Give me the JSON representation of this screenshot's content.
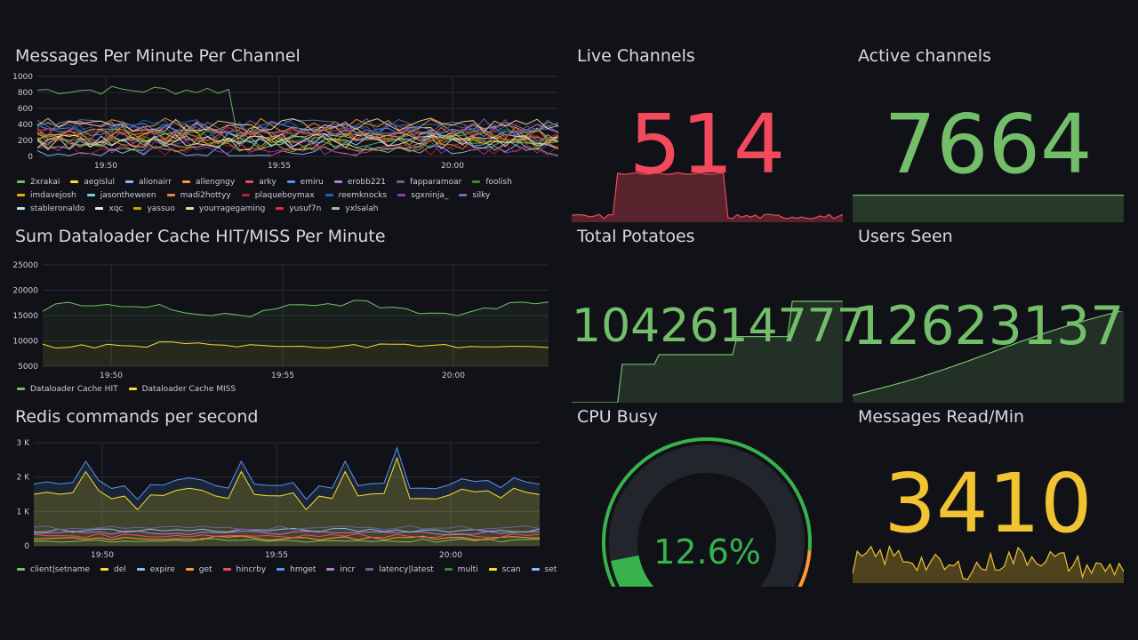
{
  "panels": {
    "messages": {
      "title": "Messages Per Minute Per Channel",
      "y_ticks": [
        "1000",
        "800",
        "600",
        "400",
        "200",
        "0"
      ],
      "x_ticks": [
        "19:50",
        "19:55",
        "20:00"
      ],
      "legend": [
        {
          "label": "2xrakai",
          "color": "#73bf69"
        },
        {
          "label": "aegislul",
          "color": "#fade2a"
        },
        {
          "label": "alionairr",
          "color": "#8ab8ff"
        },
        {
          "label": "allengngy",
          "color": "#ff9830"
        },
        {
          "label": "arky",
          "color": "#f2495c"
        },
        {
          "label": "emiru",
          "color": "#5794f2"
        },
        {
          "label": "erobb221",
          "color": "#b877d9"
        },
        {
          "label": "fapparamoar",
          "color": "#705da0"
        },
        {
          "label": "foolish",
          "color": "#37872d"
        },
        {
          "label": "imdavejosh",
          "color": "#e0b400"
        },
        {
          "label": "jasontheween",
          "color": "#6ed0e0"
        },
        {
          "label": "madi2hottyy",
          "color": "#ef843c"
        },
        {
          "label": "plaqueboymax",
          "color": "#c4162a"
        },
        {
          "label": "reemknocks",
          "color": "#1f60c4"
        },
        {
          "label": "sgxninja_",
          "color": "#8f3bb8"
        },
        {
          "label": "silky",
          "color": "#6d6fae"
        },
        {
          "label": "stableronaldo",
          "color": "#badff4"
        },
        {
          "label": "xqc",
          "color": "#f9e2d2"
        },
        {
          "label": "yassuo",
          "color": "#cca300"
        },
        {
          "label": "yourragegaming",
          "color": "#f4d598"
        },
        {
          "label": "yusuf7n",
          "color": "#e02f44"
        },
        {
          "label": "yxlsalah",
          "color": "#9ac48a"
        }
      ]
    },
    "cache": {
      "title": "Sum Dataloader Cache HIT/MISS Per Minute",
      "y_ticks": [
        "25000",
        "20000",
        "15000",
        "10000",
        "5000"
      ],
      "x_ticks": [
        "19:50",
        "19:55",
        "20:00"
      ],
      "legend": [
        {
          "label": "Dataloader Cache HIT",
          "color": "#73bf69"
        },
        {
          "label": "Dataloader Cache MISS",
          "color": "#fade2a"
        }
      ]
    },
    "redis": {
      "title": "Redis commands per second",
      "y_ticks": [
        "3 K",
        "2 K",
        "1 K",
        "0"
      ],
      "x_ticks": [
        "19:50",
        "19:55",
        "20:00"
      ],
      "legend": [
        {
          "label": "client|setname",
          "color": "#73bf69"
        },
        {
          "label": "del",
          "color": "#fade2a"
        },
        {
          "label": "expire",
          "color": "#8ab8ff"
        },
        {
          "label": "get",
          "color": "#ff9830"
        },
        {
          "label": "hincrby",
          "color": "#f2495c"
        },
        {
          "label": "hmget",
          "color": "#5794f2"
        },
        {
          "label": "incr",
          "color": "#b877d9"
        },
        {
          "label": "latency|latest",
          "color": "#705da0"
        },
        {
          "label": "multi",
          "color": "#37872d"
        },
        {
          "label": "scan",
          "color": "#fade2a"
        },
        {
          "label": "set",
          "color": "#8ab8ff"
        }
      ]
    },
    "live_channels": {
      "title": "Live Channels",
      "value": "514",
      "color": "#f2495c"
    },
    "active_channels": {
      "title": "Active channels",
      "value": "7664",
      "color": "#73bf69"
    },
    "total_potatoes": {
      "title": "Total Potatoes",
      "value": "1042614777",
      "color": "#73bf69"
    },
    "users_seen": {
      "title": "Users Seen",
      "value": "12623137",
      "color": "#73bf69"
    },
    "cpu_busy": {
      "title": "CPU Busy",
      "value": "12.6%",
      "percent": 12.6,
      "color": "#37b24d"
    },
    "messages_read": {
      "title": "Messages Read/Min",
      "value": "3410",
      "color": "#f1c232"
    }
  }
}
